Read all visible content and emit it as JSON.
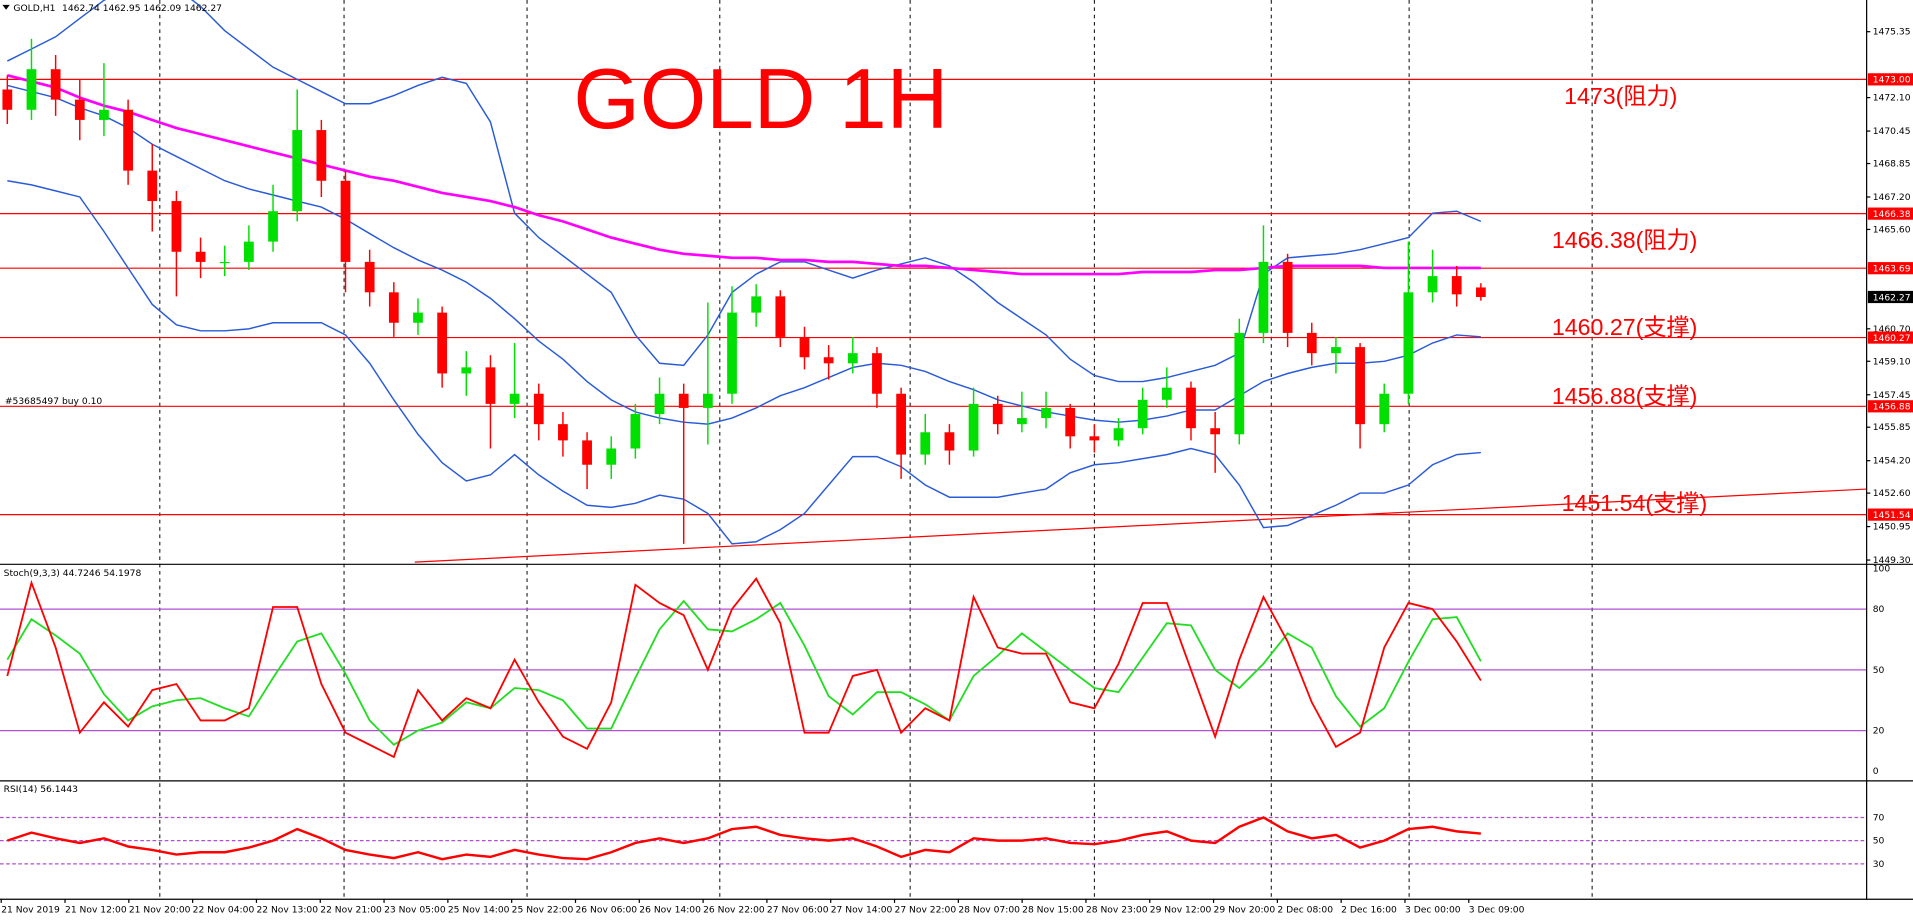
{
  "chart_data": {
    "type": "candlestick",
    "title": "GOLD 1H",
    "symbol": "GOLD,H1",
    "up_color": "#00e000",
    "down_color": "#ff0000",
    "ylim": [
      1449.12,
      1476.91
    ],
    "yticks": [
      {
        "value": 1475.35,
        "label": "1475.35"
      },
      {
        "value": 1472.1,
        "label": "1472.10"
      },
      {
        "value": 1470.45,
        "label": "1470.45"
      },
      {
        "value": 1468.85,
        "label": "1468.85"
      },
      {
        "value": 1467.2,
        "label": "1467.20"
      },
      {
        "value": 1465.6,
        "label": "1465.60"
      },
      {
        "value": 1460.7,
        "label": "1460.70"
      },
      {
        "value": 1459.1,
        "label": "1459.10"
      },
      {
        "value": 1457.45,
        "label": "1457.45"
      },
      {
        "value": 1455.85,
        "label": "1455.85"
      },
      {
        "value": 1454.2,
        "label": "1454.20"
      },
      {
        "value": 1452.6,
        "label": "1452.60"
      },
      {
        "value": 1450.95,
        "label": "1450.95"
      },
      {
        "value": 1449.3,
        "label": "1449.30"
      }
    ],
    "categories": [
      "21 Nov 2019",
      "21 Nov 12:00",
      "21 Nov 20:00",
      "22 Nov 04:00",
      "22 Nov 13:00",
      "22 Nov 21:00",
      "23 Nov 05:00",
      "25 Nov 14:00",
      "25 Nov 22:00",
      "26 Nov 06:00",
      "26 Nov 14:00",
      "26 Nov 22:00",
      "27 Nov 06:00",
      "27 Nov 14:00",
      "27 Nov 22:00",
      "28 Nov 07:00",
      "28 Nov 15:00",
      "28 Nov 23:00",
      "29 Nov 12:00",
      "29 Nov 20:00",
      "2 Dec 08:00",
      "2 Dec 16:00",
      "3 Dec 00:00",
      "3 Dec 09:00"
    ],
    "open": [
      1472.5,
      1471.5,
      1473.5,
      1472,
      1471,
      1471.5,
      1468.5,
      1467,
      1464.5,
      1464,
      1464,
      1465,
      1466.5,
      1470.5,
      1468,
      1464,
      1462.5,
      1461,
      1461.5,
      1458.5,
      1458.8,
      1457,
      1457.5,
      1456,
      1455.2,
      1454,
      1454.8,
      1456.5,
      1457.5,
      1456.8,
      1457.5,
      1461.5,
      1462.3,
      1460.3,
      1459.3,
      1459,
      1459.5,
      1457.5,
      1454.5,
      1455.6,
      1454.7,
      1457,
      1456,
      1456.3,
      1456.8,
      1455.4,
      1455.2,
      1455.8,
      1457.2,
      1457.8,
      1455.8,
      1455.5,
      1460.5,
      1464,
      1460.5,
      1459.5,
      1459.8,
      1456,
      1457.5,
      1462.5,
      1463.3,
      1462.74
    ],
    "high": [
      1473.2,
      1475,
      1474.2,
      1473,
      1473.8,
      1472,
      1469.8,
      1467.5,
      1465.2,
      1464.8,
      1465.8,
      1467.8,
      1472.5,
      1471,
      1468.5,
      1464.6,
      1463,
      1462.2,
      1461.8,
      1459.6,
      1459.4,
      1460,
      1458,
      1456.6,
      1455.6,
      1455.4,
      1457,
      1458.3,
      1458,
      1462,
      1462.8,
      1462.9,
      1462.6,
      1460.8,
      1459.9,
      1460.3,
      1459.8,
      1457.8,
      1456.5,
      1456,
      1457.8,
      1457.4,
      1457.6,
      1457.6,
      1457,
      1456,
      1456.3,
      1457.8,
      1458.8,
      1458.1,
      1456.6,
      1461.2,
      1465.8,
      1464.4,
      1461,
      1460.3,
      1460,
      1458,
      1465,
      1464.6,
      1463.8,
      1462.95
    ],
    "low": [
      1470.8,
      1471,
      1471.2,
      1470,
      1470.2,
      1467.8,
      1465.5,
      1462.3,
      1463.2,
      1463.3,
      1463.6,
      1464.5,
      1466,
      1467.2,
      1462.5,
      1461.8,
      1460.3,
      1460.4,
      1457.8,
      1457.4,
      1454.8,
      1456.3,
      1455.2,
      1454.4,
      1452.8,
      1453.3,
      1454.3,
      1456,
      1450.1,
      1455,
      1457,
      1460.8,
      1459.8,
      1458.7,
      1458.2,
      1458.5,
      1456.8,
      1453.3,
      1454,
      1454,
      1454.4,
      1455.5,
      1455.6,
      1455.8,
      1454.8,
      1454.6,
      1454.9,
      1455.5,
      1456.8,
      1455.2,
      1453.6,
      1455,
      1460,
      1459.8,
      1458.9,
      1458.5,
      1454.8,
      1455.6,
      1457,
      1462,
      1461.8,
      1462.09
    ],
    "close": [
      1471.5,
      1473.5,
      1472,
      1471,
      1471.5,
      1468.5,
      1467,
      1464.5,
      1464,
      1464,
      1465,
      1466.5,
      1470.5,
      1468,
      1464,
      1462.5,
      1461,
      1461.5,
      1458.5,
      1458.8,
      1457,
      1457.5,
      1456,
      1455.2,
      1454,
      1454.8,
      1456.5,
      1457.5,
      1456.8,
      1457.5,
      1461.5,
      1462.3,
      1460.3,
      1459.3,
      1459,
      1459.5,
      1457.5,
      1454.5,
      1455.6,
      1454.7,
      1457,
      1456,
      1456.3,
      1456.8,
      1455.4,
      1455.2,
      1455.8,
      1457.2,
      1457.8,
      1455.8,
      1455.5,
      1460.5,
      1464,
      1460.5,
      1459.5,
      1459.8,
      1456,
      1457.5,
      1462.5,
      1463.3,
      1462.4,
      1462.27
    ],
    "bands": {
      "color": "#2a5bd7",
      "upper": [
        1473.9,
        1474.5,
        1475.1,
        1476,
        1476.9,
        1477.5,
        1477.7,
        1477.5,
        1476.6,
        1475.4,
        1474.5,
        1473.6,
        1473,
        1472.4,
        1471.8,
        1471.8,
        1472.2,
        1472.7,
        1473.1,
        1472.8,
        1470.9,
        1466.4,
        1465.2,
        1464.3,
        1463.4,
        1462.5,
        1460.4,
        1459,
        1458.9,
        1460.4,
        1462.5,
        1463.4,
        1464,
        1464,
        1463.6,
        1463.2,
        1463.6,
        1463.9,
        1464.2,
        1463.8,
        1463,
        1462,
        1461.2,
        1460.4,
        1459.2,
        1458.4,
        1458.1,
        1458.1,
        1458.3,
        1458.6,
        1458.9,
        1459.5,
        1463.4,
        1464.2,
        1464.3,
        1464.4,
        1464.6,
        1464.9,
        1465.2,
        1466.4,
        1466.5,
        1466
      ],
      "middle": [
        1472.7,
        1472.4,
        1472.1,
        1471.6,
        1471.2,
        1470.6,
        1469.8,
        1469.2,
        1468.6,
        1468,
        1467.6,
        1467.3,
        1467,
        1466.7,
        1466.1,
        1465.4,
        1464.7,
        1464.1,
        1463.6,
        1463,
        1462.2,
        1461.2,
        1460.1,
        1459.2,
        1458.1,
        1457.2,
        1456.6,
        1456.3,
        1456.1,
        1456,
        1456.3,
        1456.8,
        1457.4,
        1457.8,
        1458.3,
        1458.8,
        1459,
        1458.9,
        1458.6,
        1458.1,
        1457.7,
        1457.2,
        1456.9,
        1456.6,
        1456.4,
        1456.2,
        1456.1,
        1456.2,
        1456.4,
        1456.7,
        1456.7,
        1457.4,
        1458.1,
        1458.5,
        1458.8,
        1459,
        1459,
        1459.1,
        1459.4,
        1460,
        1460.4,
        1460.3
      ],
      "lower": [
        1468,
        1467.8,
        1467.5,
        1467.2,
        1465.5,
        1463.7,
        1461.9,
        1460.9,
        1460.6,
        1460.6,
        1460.7,
        1461,
        1461,
        1461,
        1460.4,
        1459,
        1457.2,
        1455.5,
        1454.1,
        1453.2,
        1453.5,
        1454.5,
        1453.5,
        1452.7,
        1452,
        1451.9,
        1452.1,
        1452.5,
        1452.3,
        1451.6,
        1450.1,
        1450.2,
        1450.8,
        1451.6,
        1453,
        1454.4,
        1454.4,
        1453.9,
        1453,
        1452.4,
        1452.4,
        1452.4,
        1452.6,
        1452.8,
        1453.6,
        1454,
        1454.1,
        1454.3,
        1454.5,
        1454.8,
        1454.5,
        1453,
        1450.9,
        1451,
        1451.5,
        1452,
        1452.6,
        1452.6,
        1453,
        1454,
        1454.5,
        1454.6
      ]
    },
    "ma": {
      "color": "#ff00ff",
      "values": [
        1473.2,
        1472.9,
        1472.6,
        1472.1,
        1471.7,
        1471.4,
        1471,
        1470.6,
        1470.3,
        1470,
        1469.7,
        1469.4,
        1469.1,
        1468.8,
        1468.5,
        1468.2,
        1468,
        1467.7,
        1467.4,
        1467.2,
        1467,
        1466.7,
        1466.3,
        1466,
        1465.6,
        1465.2,
        1464.9,
        1464.6,
        1464.4,
        1464.3,
        1464.2,
        1464.2,
        1464.1,
        1464.1,
        1464,
        1464,
        1463.9,
        1463.8,
        1463.8,
        1463.7,
        1463.6,
        1463.5,
        1463.4,
        1463.4,
        1463.4,
        1463.4,
        1463.4,
        1463.5,
        1463.5,
        1463.5,
        1463.6,
        1463.6,
        1463.7,
        1463.8,
        1463.8,
        1463.8,
        1463.8,
        1463.7,
        1463.7,
        1463.7,
        1463.7,
        1463.7
      ]
    },
    "trendline": {
      "color": "#ff0000",
      "values": [
        1449.2,
        1452.8
      ]
    },
    "level_color": "#ff0000",
    "levels": [
      {
        "value": 1473,
        "label": "1473.00",
        "note": "1473(阻力)"
      },
      {
        "value": 1466.38,
        "label": "1466.38",
        "note": "1466.38(阻力)"
      },
      {
        "value": 1463.69,
        "label": "1463.69"
      },
      {
        "value": 1460.27,
        "label": "1460.27",
        "note": "1460.27(支撑)"
      },
      {
        "value": 1456.88,
        "label": "1456.88",
        "note": "1456.88(支撑)"
      },
      {
        "value": 1451.54,
        "label": "1451.54",
        "note": "1451.54(支撑)"
      }
    ],
    "order_label": "#53685497 buy 0.10",
    "stoch": {
      "name": "Stoch(9,3,3)",
      "ylim": [
        0,
        100
      ],
      "yticks": [
        0,
        20,
        50,
        80,
        100
      ],
      "level_color": "#b050d0",
      "k_color": "#ff0000",
      "d_color": "#22dd22",
      "k": [
        47,
        93,
        61,
        19,
        34,
        22,
        40,
        43,
        25,
        25,
        31,
        81,
        81,
        43,
        19,
        13,
        7,
        40,
        25,
        36,
        31,
        55,
        34,
        17,
        11,
        34,
        92,
        83,
        77,
        50,
        80,
        95,
        73,
        19,
        19,
        47,
        50,
        19,
        31,
        25,
        86,
        61,
        58,
        58,
        34,
        31,
        53,
        83,
        83,
        50,
        17,
        55,
        86,
        64,
        34,
        12,
        19,
        61,
        83,
        80,
        64,
        44.7246
      ],
      "d": [
        55,
        75,
        67,
        58,
        38,
        25,
        32,
        35,
        36,
        31,
        27,
        46,
        64,
        68,
        48,
        25,
        13,
        20,
        24,
        34,
        31,
        41,
        40,
        35,
        21,
        21,
        46,
        70,
        84,
        70,
        69,
        75,
        83,
        62,
        37,
        28,
        39,
        39,
        33,
        25,
        47,
        57,
        68,
        59,
        50,
        41,
        39,
        56,
        73,
        72,
        50,
        41,
        53,
        68,
        61,
        37,
        22,
        31,
        54,
        75,
        76,
        54.1978
      ]
    },
    "rsi": {
      "name": "RSI(14)",
      "ylim": [
        0,
        100
      ],
      "yticks": [
        30,
        50,
        70
      ],
      "level_color": "#b050d0",
      "color": "#ff0000",
      "values": [
        50,
        57,
        52,
        48,
        52,
        45,
        42,
        38,
        40,
        40,
        44,
        50,
        60,
        52,
        42,
        38,
        35,
        40,
        34,
        38,
        36,
        42,
        38,
        35,
        34,
        40,
        48,
        52,
        48,
        52,
        60,
        62,
        55,
        52,
        50,
        52,
        45,
        36,
        42,
        40,
        52,
        50,
        50,
        52,
        48,
        47,
        50,
        55,
        58,
        50,
        48,
        62,
        70,
        58,
        52,
        55,
        44,
        50,
        60,
        62,
        58,
        56.1443
      ]
    }
  }
}
